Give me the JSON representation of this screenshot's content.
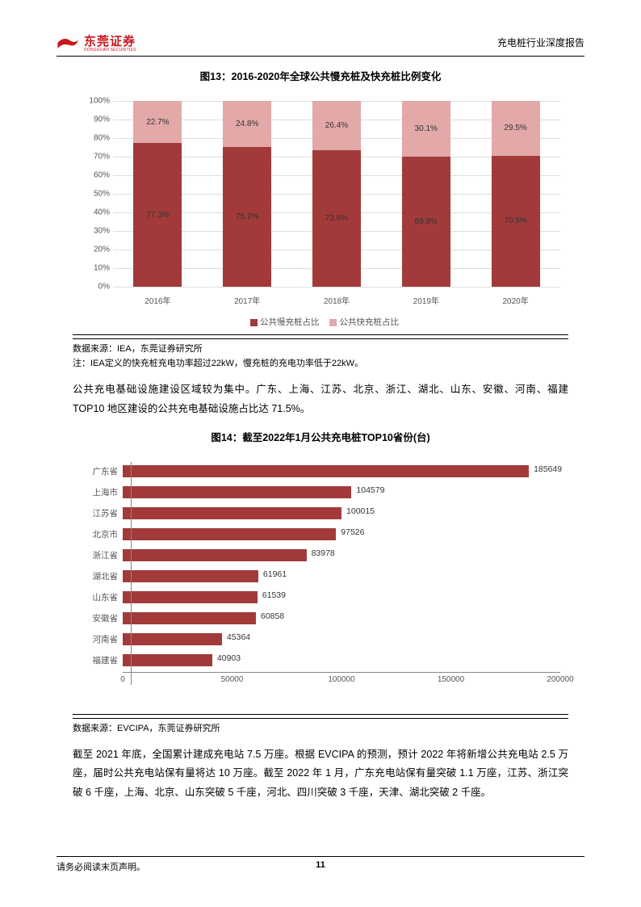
{
  "header": {
    "logo_text": "东莞证券",
    "logo_sub": "DONGGUAN SECURITIES",
    "right": "充电桩行业深度报告"
  },
  "chart1": {
    "title": "图13：2016-2020年全球公共慢充桩及快充桩比例变化",
    "type": "stacked-bar",
    "categories": [
      "2016年",
      "2017年",
      "2018年",
      "2019年",
      "2020年"
    ],
    "series_slow": [
      77.3,
      75.2,
      73.6,
      69.9,
      70.5
    ],
    "series_fast": [
      22.7,
      24.8,
      26.4,
      30.1,
      29.5
    ],
    "slow_labels": [
      "77.3%",
      "75.2%",
      "73.6%",
      "69.9%",
      "70.5%"
    ],
    "fast_labels": [
      "22.7%",
      "24.8%",
      "26.4%",
      "30.1%",
      "29.5%"
    ],
    "color_slow": "#a23a3a",
    "color_fast": "#e3a8a8",
    "y_ticks": [
      "0%",
      "10%",
      "20%",
      "30%",
      "40%",
      "50%",
      "60%",
      "70%",
      "80%",
      "90%",
      "100%"
    ],
    "legend": {
      "slow": "公共慢充桩占比",
      "fast": "公共快充桩占比"
    },
    "source": "数据来源：IEA，东莞证券研究所",
    "note": "注：IEA定义的快充桩充电功率超过22kW，慢充桩的充电功率低于22kW。",
    "grid_color": "#dddddd",
    "background": "#ffffff"
  },
  "para1": "公共充电基础设施建设区域较为集中。广东、上海、江苏、北京、浙江、湖北、山东、安徽、河南、福建 TOP10 地区建设的公共充电基础设施占比达 71.5%。",
  "chart2": {
    "title": "图14：截至2022年1月公共充电桩TOP10省份(台)",
    "type": "horizontal-bar",
    "categories": [
      "广东省",
      "上海市",
      "江苏省",
      "北京市",
      "浙江省",
      "湖北省",
      "山东省",
      "安徽省",
      "河南省",
      "福建省"
    ],
    "values": [
      185649,
      104579,
      100015,
      97526,
      83978,
      61961,
      61539,
      60858,
      45364,
      40903
    ],
    "value_labels": [
      "185649",
      "104579",
      "100015",
      "97526",
      "83978",
      "61961",
      "61539",
      "60858",
      "45364",
      "40903"
    ],
    "bar_color": "#a23a3a",
    "x_ticks": [
      0,
      50000,
      100000,
      150000,
      200000
    ],
    "x_tick_labels": [
      "0",
      "50000",
      "100000",
      "150000",
      "200000"
    ],
    "x_max": 200000,
    "source": "数据来源：EVCIPA，东莞证券研究所"
  },
  "para2": "截至 2021 年底，全国累计建成充电站 7.5 万座。根据 EVCIPA 的预测，预计 2022 年将新增公共充电站 2.5 万座，届时公共充电站保有量将达 10 万座。截至 2022 年 1 月，广东充电站保有量突破 1.1 万座，江苏、浙江突破 6 千座，上海、北京、山东突破 5 千座，河北、四川突破 3 千座，天津、湖北突破 2 千座。",
  "footer": {
    "left": "请务必阅读末页声明。",
    "page": "11"
  }
}
